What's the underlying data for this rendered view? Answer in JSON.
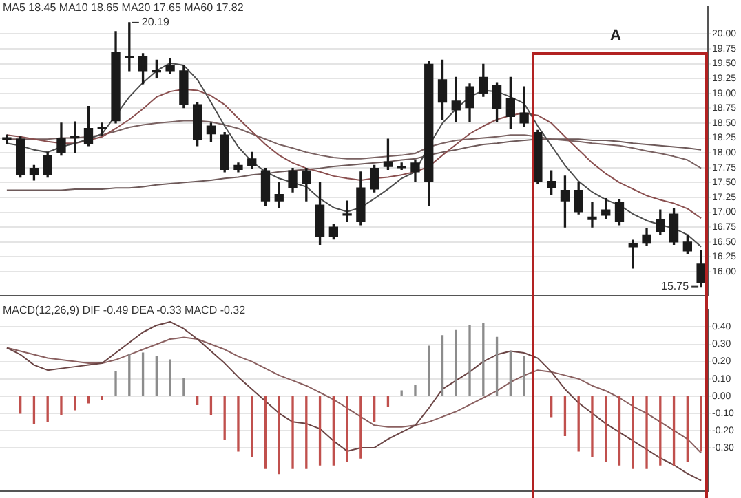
{
  "chart_data": [
    {
      "type": "candlestick",
      "annotations": [
        "MA5 18.45 MA10 18.65 MA20 17.65 MA60 17.82",
        "A",
        "20.19",
        "15.75"
      ],
      "categories": [
        null,
        null,
        null,
        null,
        null,
        null,
        null,
        null,
        null,
        null,
        null,
        null,
        null,
        null,
        null,
        null,
        null,
        null,
        null,
        null,
        null,
        null,
        null,
        null,
        null,
        null,
        null,
        null,
        null,
        null,
        null,
        null,
        null,
        null,
        null,
        null,
        null,
        null,
        null,
        null,
        null,
        null,
        null,
        null,
        null,
        null,
        null,
        null,
        null,
        null,
        null,
        null
      ],
      "color": "#1a1a1a",
      "ohlc": [
        [
          18.25,
          18.3,
          18.16,
          18.23
        ],
        [
          18.23,
          18.27,
          17.59,
          17.63
        ],
        [
          17.74,
          17.79,
          17.54,
          17.63
        ],
        [
          17.96,
          18.01,
          17.59,
          17.63
        ],
        [
          18.25,
          18.5,
          17.96,
          18.01
        ],
        [
          18.27,
          18.52,
          18.01,
          18.25
        ],
        [
          18.41,
          18.78,
          18.12,
          18.16
        ],
        [
          18.43,
          18.5,
          18.3,
          18.41
        ],
        [
          19.69,
          20.04,
          18.5,
          18.54
        ],
        [
          19.62,
          20.19,
          19.38,
          19.6
        ],
        [
          19.62,
          19.67,
          19.16,
          19.38
        ],
        [
          19.38,
          19.56,
          19.27,
          19.36
        ],
        [
          19.47,
          19.58,
          19.34,
          19.38
        ],
        [
          19.38,
          19.47,
          18.76,
          18.81
        ],
        [
          18.81,
          18.85,
          18.12,
          18.23
        ],
        [
          18.45,
          18.5,
          18.19,
          18.32
        ],
        [
          18.3,
          18.34,
          17.68,
          17.72
        ],
        [
          17.79,
          17.83,
          17.68,
          17.72
        ],
        [
          17.9,
          18.01,
          17.74,
          17.79
        ],
        [
          17.7,
          17.74,
          17.12,
          17.19
        ],
        [
          17.3,
          17.5,
          17.08,
          17.19
        ],
        [
          17.7,
          17.74,
          17.34,
          17.41
        ],
        [
          17.7,
          17.74,
          17.19,
          17.48
        ],
        [
          17.12,
          17.5,
          16.46,
          16.59
        ],
        [
          16.75,
          16.79,
          16.55,
          16.59
        ],
        [
          16.97,
          17.19,
          16.84,
          16.95
        ],
        [
          17.41,
          17.68,
          16.79,
          16.84
        ],
        [
          17.74,
          17.79,
          17.34,
          17.39
        ],
        [
          17.85,
          18.23,
          17.72,
          17.77
        ],
        [
          17.77,
          17.83,
          17.72,
          17.75
        ],
        [
          17.83,
          17.88,
          17.52,
          17.68
        ],
        [
          19.49,
          19.54,
          17.12,
          17.52
        ],
        [
          19.23,
          19.56,
          18.56,
          18.85
        ],
        [
          18.87,
          19.27,
          18.52,
          18.72
        ],
        [
          19.11,
          19.16,
          18.52,
          18.76
        ],
        [
          19.27,
          19.49,
          18.95,
          19.0
        ],
        [
          19.14,
          19.18,
          18.52,
          18.74
        ],
        [
          18.92,
          19.27,
          18.41,
          18.61
        ],
        [
          18.67,
          19.11,
          18.45,
          18.5
        ],
        [
          18.34,
          18.38,
          17.48,
          17.52
        ],
        [
          17.52,
          17.7,
          17.3,
          17.41
        ],
        [
          17.37,
          17.61,
          16.75,
          17.19
        ],
        [
          17.37,
          17.5,
          16.97,
          17.01
        ],
        [
          16.92,
          17.17,
          16.75,
          16.88
        ],
        [
          17.04,
          17.23,
          16.9,
          16.95
        ],
        [
          17.17,
          17.21,
          16.79,
          16.84
        ],
        [
          16.48,
          16.53,
          16.06,
          16.42
        ],
        [
          16.62,
          16.73,
          16.44,
          16.48
        ],
        [
          16.88,
          17.04,
          16.62,
          16.68
        ],
        [
          16.97,
          17.06,
          16.46,
          16.5
        ],
        [
          16.5,
          16.62,
          16.31,
          16.35
        ],
        [
          16.13,
          16.35,
          15.75,
          15.82
        ]
      ],
      "series": [
        {
          "type": "line",
          "color": "#4d4d4d",
          "values": [
            18.16,
            18.12,
            18.05,
            18.01,
            18.1,
            18.16,
            18.23,
            18.32,
            18.63,
            18.94,
            19.18,
            19.38,
            19.51,
            19.47,
            19.23,
            18.85,
            18.45,
            18.1,
            17.85,
            17.68,
            17.57,
            17.5,
            17.43,
            17.23,
            17.08,
            17.01,
            17.08,
            17.23,
            17.39,
            17.57,
            17.68,
            18.12,
            18.5,
            18.74,
            18.94,
            19.05,
            19.03,
            18.94,
            18.83,
            18.45,
            18.12,
            17.79,
            17.52,
            17.34,
            17.21,
            17.12,
            16.97,
            16.86,
            16.79,
            16.73,
            16.62,
            16.42
          ]
        },
        {
          "type": "line",
          "color": "#8a4f4f",
          "values": [
            18.3,
            18.27,
            18.23,
            18.19,
            18.16,
            18.16,
            18.21,
            18.27,
            18.41,
            18.56,
            18.74,
            18.94,
            19.03,
            19.07,
            19.05,
            18.96,
            18.81,
            18.58,
            18.36,
            18.14,
            17.96,
            17.83,
            17.74,
            17.68,
            17.61,
            17.57,
            17.54,
            17.57,
            17.59,
            17.63,
            17.68,
            17.77,
            17.96,
            18.14,
            18.32,
            18.45,
            18.56,
            18.63,
            18.67,
            18.63,
            18.5,
            18.27,
            18.05,
            17.83,
            17.65,
            17.5,
            17.39,
            17.28,
            17.21,
            17.15,
            17.06,
            16.9
          ]
        },
        {
          "type": "line",
          "color": "#7a6262",
          "values": [
            18.23,
            18.23,
            18.23,
            18.23,
            18.25,
            18.25,
            18.27,
            18.3,
            18.36,
            18.43,
            18.47,
            18.5,
            18.52,
            18.54,
            18.54,
            18.52,
            18.47,
            18.41,
            18.32,
            18.23,
            18.14,
            18.08,
            18.01,
            17.96,
            17.92,
            17.9,
            17.9,
            17.92,
            17.94,
            17.96,
            17.99,
            18.1,
            18.16,
            18.21,
            18.23,
            18.25,
            18.27,
            18.3,
            18.3,
            18.27,
            18.23,
            18.21,
            18.19,
            18.16,
            18.14,
            18.12,
            18.08,
            18.03,
            17.99,
            17.94,
            17.88,
            17.74
          ]
        },
        {
          "type": "line",
          "color": "#6e5a5a",
          "values": [
            17.37,
            17.37,
            17.37,
            17.37,
            17.37,
            17.39,
            17.39,
            17.39,
            17.41,
            17.41,
            17.43,
            17.46,
            17.48,
            17.5,
            17.52,
            17.54,
            17.57,
            17.59,
            17.63,
            17.65,
            17.68,
            17.7,
            17.72,
            17.74,
            17.77,
            17.79,
            17.81,
            17.83,
            17.85,
            17.88,
            17.9,
            17.96,
            18.01,
            18.05,
            18.1,
            18.14,
            18.16,
            18.19,
            18.21,
            18.23,
            18.23,
            18.23,
            18.23,
            18.21,
            18.21,
            18.19,
            18.16,
            18.14,
            18.12,
            18.1,
            18.08,
            18.05
          ]
        }
      ],
      "ylim": [
        15.6,
        20.45
      ],
      "yticks": [
        {
          "value": 20,
          "label": "20.00"
        },
        19.75,
        {
          "value": 19.5,
          "label": "19.50"
        },
        19.25,
        {
          "value": 19,
          "label": "19.00"
        },
        18.75,
        {
          "value": 18.5,
          "label": "18.50"
        },
        18.25,
        {
          "value": 18,
          "label": "18.00"
        },
        17.75,
        {
          "value": 17.5,
          "label": "17.50"
        },
        17.25,
        {
          "value": 17,
          "label": "17.00"
        },
        16.75,
        {
          "value": 16.5,
          "label": "16.50"
        },
        16.25,
        {
          "value": 16,
          "label": "16.00"
        }
      ],
      "grid": "y",
      "tick_labels": "y"
    },
    {
      "type": "bar",
      "annotations": [
        "MACD(12,26,9) DIF -0.49 DEA -0.33 MACD -0.32"
      ],
      "categories": [
        null,
        null,
        null,
        null,
        null,
        null,
        null,
        null,
        null,
        null,
        null,
        null,
        null,
        null,
        null,
        null,
        null,
        null,
        null,
        null,
        null,
        null,
        null,
        null,
        null,
        null,
        null,
        null,
        null,
        null,
        null,
        null,
        null,
        null,
        null,
        null,
        null,
        null,
        null,
        null,
        null,
        null,
        null,
        null,
        null,
        null,
        null,
        null,
        null,
        null,
        null,
        null
      ],
      "series": [
        {
          "type": "bar",
          "colors": [
            "#8c8c8c",
            "#c0504d",
            "#c0504d",
            "#c0504d",
            "#c0504d",
            "#c0504d",
            "#c0504d",
            "#c0504d",
            "#8c8c8c",
            "#8c8c8c",
            "#8c8c8c",
            "#8c8c8c",
            "#8c8c8c",
            "#8c8c8c",
            "#c0504d",
            "#c0504d",
            "#c0504d",
            "#c0504d",
            "#c0504d",
            "#c0504d",
            "#c0504d",
            "#c0504d",
            "#c0504d",
            "#c0504d",
            "#c0504d",
            "#c0504d",
            "#c0504d",
            "#c0504d",
            "#c0504d",
            "#8c8c8c",
            "#8c8c8c",
            "#8c8c8c",
            "#8c8c8c",
            "#8c8c8c",
            "#8c8c8c",
            "#8c8c8c",
            "#8c8c8c",
            "#8c8c8c",
            "#8c8c8c",
            "#8c8c8c",
            "#c0504d",
            "#c0504d",
            "#c0504d",
            "#c0504d",
            "#c0504d",
            "#c0504d",
            "#c0504d",
            "#c0504d",
            "#c0504d",
            "#c0504d",
            "#c0504d",
            "#c0504d"
          ],
          "values": [
            null,
            -0.1,
            -0.16,
            -0.15,
            -0.11,
            -0.08,
            -0.04,
            -0.02,
            0.14,
            0.24,
            0.25,
            0.23,
            0.21,
            0.1,
            -0.05,
            -0.11,
            -0.25,
            -0.32,
            -0.35,
            -0.42,
            -0.45,
            -0.42,
            -0.42,
            -0.4,
            -0.4,
            -0.38,
            -0.36,
            -0.15,
            -0.06,
            0.03,
            0.06,
            0.29,
            0.35,
            0.38,
            0.41,
            0.42,
            0.34,
            0.26,
            0.23,
            null,
            -0.12,
            -0.23,
            -0.32,
            -0.35,
            -0.38,
            -0.4,
            -0.42,
            -0.42,
            -0.4,
            -0.4,
            -0.38,
            -0.32
          ]
        },
        {
          "type": "line",
          "color": "#6b4545",
          "values": [
            0.28,
            0.24,
            0.18,
            0.15,
            0.16,
            0.17,
            0.18,
            0.19,
            0.25,
            0.31,
            0.37,
            0.41,
            0.43,
            0.39,
            0.33,
            0.26,
            0.19,
            0.11,
            0.04,
            -0.03,
            -0.1,
            -0.15,
            -0.16,
            -0.19,
            -0.26,
            -0.32,
            -0.3,
            -0.3,
            -0.25,
            -0.21,
            -0.17,
            -0.07,
            0.04,
            0.09,
            0.14,
            0.2,
            0.24,
            0.26,
            0.25,
            0.22,
            0.14,
            0.04,
            -0.04,
            -0.1,
            -0.16,
            -0.21,
            -0.26,
            -0.31,
            -0.36,
            -0.4,
            -0.45,
            -0.49
          ]
        },
        {
          "type": "line",
          "color": "#8a6060",
          "values": [
            0.28,
            0.26,
            0.24,
            0.22,
            0.21,
            0.2,
            0.19,
            0.19,
            0.21,
            0.24,
            0.27,
            0.3,
            0.33,
            0.34,
            0.33,
            0.3,
            0.27,
            0.23,
            0.2,
            0.16,
            0.12,
            0.09,
            0.06,
            0.02,
            -0.02,
            -0.07,
            -0.12,
            -0.17,
            -0.18,
            -0.18,
            -0.17,
            -0.15,
            -0.12,
            -0.09,
            -0.05,
            -0.01,
            0.03,
            0.08,
            0.12,
            0.15,
            0.14,
            0.12,
            0.1,
            0.06,
            0.03,
            -0.01,
            -0.06,
            -0.1,
            -0.15,
            -0.2,
            -0.25,
            -0.33
          ]
        }
      ],
      "ylim": [
        -0.55,
        0.5
      ],
      "yticks": [
        {
          "value": 0.4,
          "label": "0.40"
        },
        {
          "value": 0.3,
          "label": "0.30"
        },
        {
          "value": 0.2,
          "label": "0.20"
        },
        {
          "value": 0.1,
          "label": "0.10"
        },
        {
          "value": 0,
          "label": "0.00"
        },
        {
          "value": -0.1,
          "label": "-0.10"
        },
        {
          "value": -0.2,
          "label": "-0.20"
        },
        {
          "value": -0.3,
          "label": "-0.30"
        }
      ],
      "grid": "y",
      "tick_labels": "y"
    }
  ]
}
